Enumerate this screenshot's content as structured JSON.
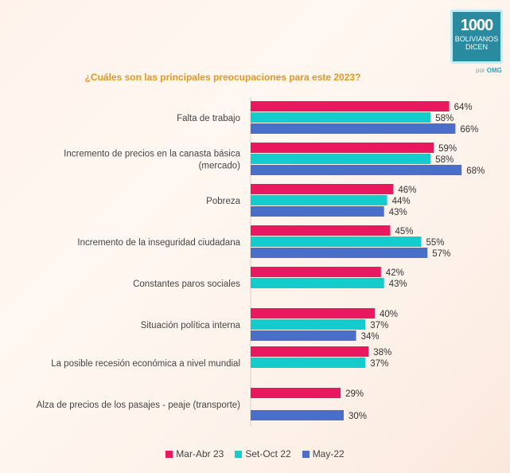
{
  "brand": {
    "number": "1000",
    "line1": "BOLIVIANOS",
    "line2": "DICEN",
    "by_prefix": "por",
    "by_name": "OMG",
    "color": "#2a8aa0"
  },
  "chart_data": {
    "type": "bar",
    "orientation": "horizontal",
    "title": "¿Cuáles son las principales preocupaciones para este 2023?",
    "xlabel": "",
    "ylabel": "",
    "value_suffix": "%",
    "xlim": [
      0,
      100
    ],
    "grid": false,
    "legend_position": "bottom",
    "categories": [
      [
        "Falta de trabajo"
      ],
      [
        "Incremento de precios en la canasta básica",
        "(mercado)"
      ],
      [
        "Pobreza"
      ],
      [
        "Incremento de la inseguridad ciudadana"
      ],
      [
        "Constantes paros sociales"
      ],
      [
        "Situación política interna"
      ],
      [
        "La posible recesión económica a nivel mundial"
      ],
      [
        "Alza de precios de los pasajes - peaje (transporte)"
      ]
    ],
    "series": [
      {
        "name": "Mar-Abr 23",
        "color": "#e8195f",
        "values": [
          64,
          59,
          46,
          45,
          42,
          40,
          38,
          29
        ]
      },
      {
        "name": "Set-Oct 22",
        "color": "#14cccc",
        "values": [
          58,
          58,
          44,
          55,
          43,
          37,
          37,
          null
        ]
      },
      {
        "name": "May-22",
        "color": "#4a6fc9",
        "values": [
          66,
          68,
          43,
          57,
          null,
          34,
          null,
          30
        ]
      }
    ]
  }
}
